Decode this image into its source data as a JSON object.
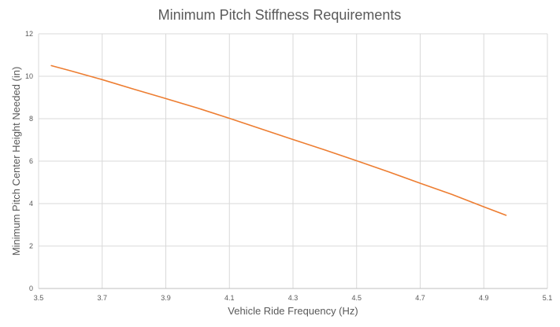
{
  "chart_data": {
    "type": "line",
    "title": "Minimum Pitch Stiffness Requirements",
    "xlabel": "Vehicle Ride Frequency (Hz)",
    "ylabel": "Minimum Pitch Center Height Needed (in)",
    "xlim": [
      3.5,
      5.1
    ],
    "ylim": [
      0,
      12
    ],
    "xticks": [
      3.5,
      3.7,
      3.9,
      4.1,
      4.3,
      4.5,
      4.7,
      4.9,
      5.1
    ],
    "yticks": [
      0,
      2,
      4,
      6,
      8,
      10,
      12
    ],
    "xtick_labels": [
      "3.5",
      "3.7",
      "3.9",
      "4.1",
      "4.3",
      "4.5",
      "4.7",
      "4.9",
      "5.1"
    ],
    "ytick_labels": [
      "0",
      "2",
      "4",
      "6",
      "8",
      "10",
      "12"
    ],
    "grid": true,
    "legend": "none",
    "series": [
      {
        "color": "#ED7D31",
        "x": [
          3.54,
          3.6,
          3.7,
          3.8,
          3.9,
          4.0,
          4.1,
          4.2,
          4.3,
          4.4,
          4.5,
          4.6,
          4.7,
          4.8,
          4.9,
          4.97
        ],
        "y": [
          10.5,
          10.26,
          9.84,
          9.39,
          8.95,
          8.5,
          8.02,
          7.52,
          7.02,
          6.53,
          6.02,
          5.5,
          4.96,
          4.43,
          3.85,
          3.45
        ]
      }
    ]
  }
}
